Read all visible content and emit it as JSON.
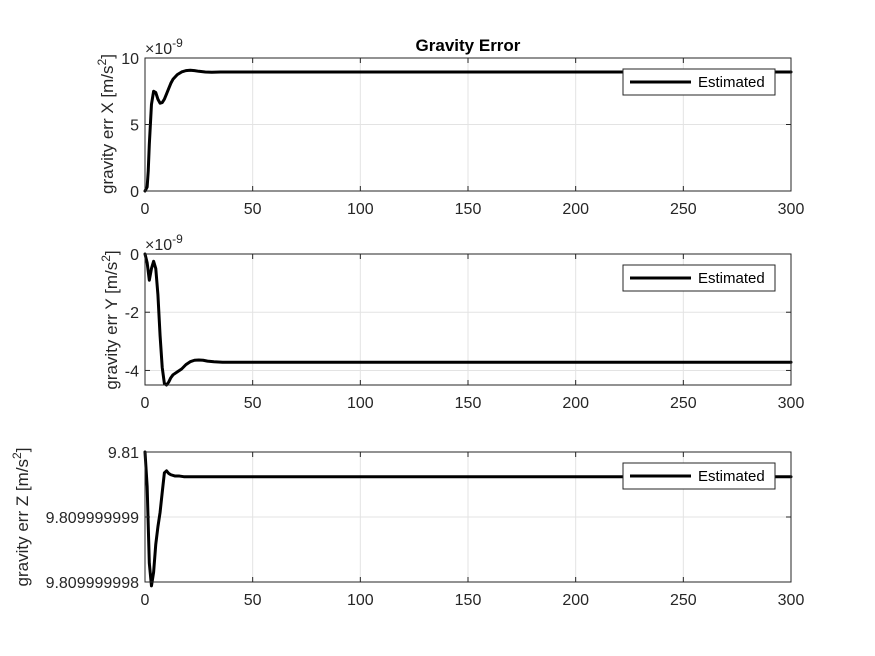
{
  "chart_data": [
    {
      "type": "line",
      "title": "Gravity Error",
      "ylabel": "gravity err X [m/s",
      "ylabel_sup": "2",
      "ylabel_end": "]",
      "xlim": [
        0,
        300
      ],
      "ylim": [
        0,
        10
      ],
      "xticks": [
        0,
        50,
        100,
        150,
        200,
        250,
        300
      ],
      "yticks": [
        0,
        5,
        10
      ],
      "ytick_labels": [
        "0",
        "5",
        "10"
      ],
      "exponent_base": "×10",
      "exponent_power": "-9",
      "grid": true,
      "legend_position": "top-right",
      "series": [
        {
          "name": "Estimated",
          "color": "#000000",
          "x": [
            0,
            1,
            1.5,
            2,
            3,
            4,
            5,
            6,
            7,
            8,
            9,
            10,
            11,
            12,
            13,
            15,
            17,
            19,
            21,
            23,
            25,
            28,
            31,
            35,
            40,
            50,
            100,
            150,
            200,
            250,
            300
          ],
          "y": [
            0,
            0.3,
            1.5,
            3.5,
            6.5,
            7.5,
            7.4,
            6.9,
            6.6,
            6.65,
            6.9,
            7.3,
            7.7,
            8.1,
            8.4,
            8.75,
            8.95,
            9.05,
            9.08,
            9.05,
            9.0,
            8.95,
            8.93,
            8.95,
            8.95,
            8.95,
            8.95,
            8.95,
            8.95,
            8.95,
            8.95
          ]
        }
      ]
    },
    {
      "type": "line",
      "title": "",
      "ylabel": "gravity err Y [m/s",
      "ylabel_sup": "2",
      "ylabel_end": "]",
      "xlim": [
        0,
        300
      ],
      "ylim": [
        -4.5,
        0
      ],
      "xticks": [
        0,
        50,
        100,
        150,
        200,
        250,
        300
      ],
      "yticks": [
        -4,
        -2,
        0
      ],
      "ytick_labels": [
        "-4",
        "-2",
        "0"
      ],
      "exponent_base": "×10",
      "exponent_power": "-9",
      "grid": true,
      "legend_position": "top-right",
      "series": [
        {
          "name": "Estimated",
          "color": "#000000",
          "x": [
            0,
            1,
            2,
            3,
            4,
            5,
            6,
            7,
            8,
            9,
            10,
            11,
            12,
            13,
            15,
            17,
            19,
            21,
            23,
            25,
            27,
            29,
            32,
            36,
            40,
            50,
            100,
            150,
            200,
            250,
            300
          ],
          "y": [
            0,
            -0.3,
            -0.9,
            -0.5,
            -0.25,
            -0.5,
            -1.4,
            -2.8,
            -3.9,
            -4.45,
            -4.5,
            -4.4,
            -4.25,
            -4.15,
            -4.05,
            -3.95,
            -3.8,
            -3.7,
            -3.65,
            -3.64,
            -3.65,
            -3.68,
            -3.7,
            -3.72,
            -3.72,
            -3.72,
            -3.72,
            -3.72,
            -3.72,
            -3.72,
            -3.72
          ]
        }
      ]
    },
    {
      "type": "line",
      "title": "",
      "ylabel": "gravity err Z [m/s",
      "ylabel_sup": "2",
      "ylabel_end": "]",
      "xlim": [
        0,
        300
      ],
      "ylim": [
        9.809999998,
        9.81
      ],
      "xticks": [
        0,
        50,
        100,
        150,
        200,
        250,
        300
      ],
      "yticks": [
        9.809999998,
        9.809999999,
        9.81
      ],
      "ytick_labels": [
        "9.809999998",
        "9.809999999",
        "9.81"
      ],
      "exponent_base": "",
      "exponent_power": "",
      "grid": true,
      "legend_position": "top-right",
      "series": [
        {
          "name": "Estimated",
          "color": "#000000",
          "x": [
            0,
            1,
            2,
            3,
            4,
            5,
            6,
            7,
            8,
            9,
            10,
            11,
            12,
            14,
            16,
            18,
            20,
            25,
            30,
            40,
            50,
            100,
            150,
            200,
            250,
            300
          ],
          "y": [
            9.81,
            9.80999999947,
            9.80999999829,
            9.80999999794,
            9.80999999815,
            9.80999999858,
            9.80999999885,
            9.80999999907,
            9.80999999938,
            9.80999999968,
            9.80999999971,
            9.80999999967,
            9.80999999965,
            9.80999999963,
            9.80999999963,
            9.80999999962,
            9.80999999962,
            9.80999999962,
            9.80999999962,
            9.80999999962,
            9.80999999962,
            9.80999999962,
            9.80999999962,
            9.80999999962,
            9.80999999962,
            9.80999999962
          ]
        }
      ]
    }
  ]
}
